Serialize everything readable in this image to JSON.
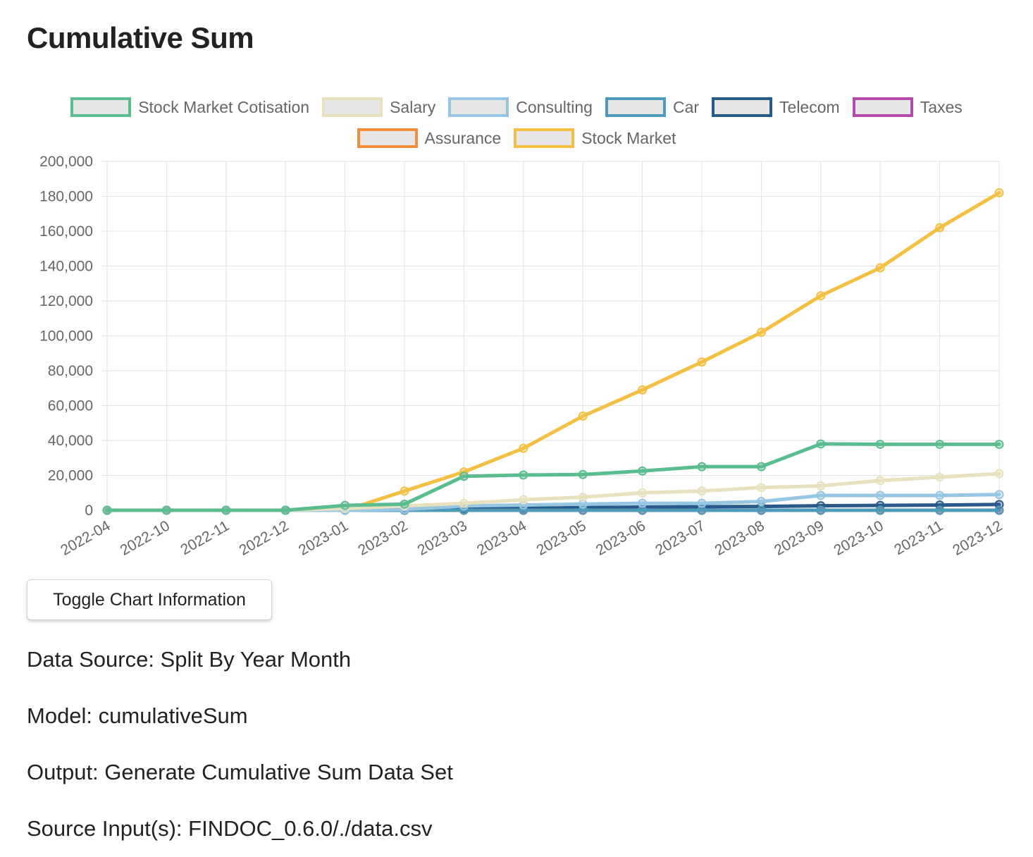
{
  "page": {
    "title": "Cumulative Sum",
    "toggle_label": "Toggle Chart Information",
    "info": [
      "Data Source: Split By Year Month",
      "Model: cumulativeSum",
      "Output: Generate Cumulative Sum Data Set",
      "Source Input(s): FINDOC_0.6.0/./data.csv"
    ]
  },
  "chart_data": {
    "type": "line",
    "title": "",
    "xlabel": "",
    "ylabel": "",
    "ylim": [
      0,
      200000
    ],
    "yticks": [
      "200,000",
      "180,000",
      "160,000",
      "140,000",
      "120,000",
      "100,000",
      "80,000",
      "60,000",
      "40,000",
      "20,000",
      "0"
    ],
    "grid": true,
    "legend": "top",
    "categories": [
      "2022-04",
      "2022-10",
      "2022-11",
      "2022-12",
      "2023-01",
      "2023-02",
      "2023-03",
      "2023-04",
      "2023-05",
      "2023-06",
      "2023-07",
      "2023-08",
      "2023-09",
      "2023-10",
      "2023-11",
      "2023-12"
    ],
    "series": [
      {
        "name": "Stock Market Cotisation",
        "color": "#5bbd8f",
        "values": [
          0,
          0,
          0,
          0,
          2800,
          3500,
          19500,
          20200,
          20500,
          22500,
          25000,
          25000,
          38000,
          37800,
          37800,
          37800
        ]
      },
      {
        "name": "Salary",
        "color": "#e8e1bf",
        "values": [
          0,
          0,
          0,
          0,
          1000,
          2500,
          4000,
          6000,
          7500,
          10000,
          11000,
          13000,
          14000,
          17000,
          19000,
          21000
        ]
      },
      {
        "name": "Consulting",
        "color": "#97c6e3",
        "values": [
          0,
          0,
          0,
          0,
          0,
          500,
          2500,
          3000,
          3500,
          4000,
          4000,
          5000,
          8500,
          8500,
          8500,
          9000
        ]
      },
      {
        "name": "Car",
        "color": "#4d9bb8",
        "values": [
          0,
          0,
          0,
          0,
          0,
          0,
          0,
          0,
          0,
          0,
          0,
          0,
          0,
          0,
          0,
          0
        ]
      },
      {
        "name": "Telecom",
        "color": "#2a5a8a",
        "values": [
          0,
          0,
          0,
          0,
          0,
          500,
          1000,
          1200,
          1500,
          1800,
          2000,
          2200,
          2600,
          2800,
          3000,
          3300
        ]
      },
      {
        "name": "Taxes",
        "color": "#b34ca8",
        "values": [
          0,
          0,
          0,
          0,
          0,
          0,
          0,
          0,
          0,
          0,
          0,
          0,
          0,
          0,
          0,
          0
        ]
      },
      {
        "name": "Assurance",
        "color": "#ef8f3c",
        "values": [
          0,
          0,
          0,
          0,
          0,
          0,
          0,
          0,
          0,
          0,
          0,
          0,
          0,
          0,
          0,
          0
        ]
      },
      {
        "name": "Stock Market",
        "color": "#f4c043",
        "values": [
          0,
          0,
          0,
          0,
          0,
          11000,
          22000,
          35500,
          54000,
          69000,
          85000,
          102000,
          123000,
          139000,
          162000,
          182000
        ]
      }
    ]
  }
}
